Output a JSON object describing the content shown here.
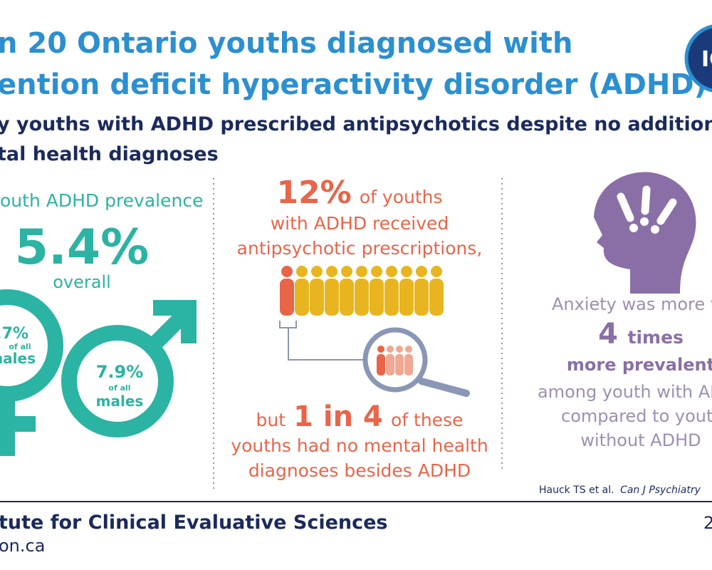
{
  "header": {
    "title_lines": [
      "n 20 Ontario youths diagnosed with",
      "ention deficit hyperactivity disorder (ADHD)"
    ],
    "subtitle_lines": [
      "y youths with ADHD prescribed antipsychotics despite no additiona",
      "tal health diagnoses"
    ],
    "logo": "IC"
  },
  "prevalence": {
    "label": "outh ADHD prevalence",
    "overall_value": "5.4%",
    "overall_label": "overall",
    "female_value": ".7%",
    "female_of": "of all",
    "female_label": "nales",
    "male_value": "7.9%",
    "male_of": "of all",
    "male_label": "males"
  },
  "antipsychotics": {
    "value": "12%",
    "value_suffix": "of youths",
    "lines": [
      "with ADHD received",
      "antipsychotic prescriptions,"
    ],
    "but_prefix": "but",
    "ratio": "1 in 4",
    "ratio_suffix": "of these",
    "tail_lines": [
      "youths had no mental health",
      "diagnoses besides ADHD"
    ]
  },
  "anxiety": {
    "lead": "Anxiety was more t",
    "multiple": "4",
    "multiple_unit": "times",
    "emphasis": "more prevalent",
    "lines": [
      "among youth with AD",
      "compared to youth",
      "without ADHD"
    ]
  },
  "citation": {
    "authors": "Hauck TS et al.",
    "journal": "Can J Psychiatry"
  },
  "footer": {
    "org": "tute for Clinical Evaluative Sciences",
    "url": "on.ca",
    "page_mark": "2"
  }
}
